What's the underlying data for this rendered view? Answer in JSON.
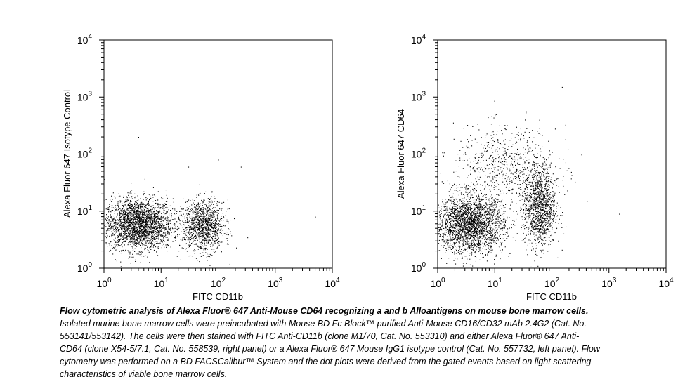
{
  "figure": {
    "caption_bold": "Flow cytometric analysis of Alexa Fluor® 647 Anti-Mouse CD64 recognizing a and b Alloantigens on mouse bone marrow cells.",
    "caption_text": " Isolated murine bone marrow cells were preincubated with Mouse BD Fc Block™ purified Anti-Mouse CD16/CD32 mAb 2.4G2 (Cat. No. 553141/553142).  The cells were then stained with FITC Anti-CD11b (clone M1/70, Cat. No. 553310) and either Alexa Fluor® 647 Anti-CD64 (clone X54-5/7.1, Cat. No. 558539, right panel) or a Alexa Fluor® 647 Mouse IgG1 isotype control (Cat. No. 557732, left panel).  Flow cytometry was performed on a BD FACSCalibur™ System and the dot plots were derived from the gated events based on light scattering characteristics of viable bone marrow cells."
  },
  "chart_data": [
    {
      "type": "scatter",
      "panel": "left",
      "xlabel": "FITC CD11b",
      "ylabel": "Alexa Fluor 647 Isotype Control",
      "xscale": "log",
      "yscale": "log",
      "xlim": [
        1,
        10000
      ],
      "ylim": [
        1,
        10000
      ],
      "xticks": [
        "10^0",
        "10^1",
        "10^2",
        "10^3",
        "10^4"
      ],
      "yticks": [
        "10^0",
        "10^1",
        "10^2",
        "10^3",
        "10^4"
      ],
      "clusters": [
        {
          "center_x": 4,
          "center_y": 6,
          "spread_x_log": 0.3,
          "spread_y_log": 0.22,
          "n": 2600
        },
        {
          "center_x": 55,
          "center_y": 5.5,
          "spread_x_log": 0.18,
          "spread_y_log": 0.22,
          "n": 1200
        }
      ],
      "outliers": [
        [
          4,
          200
        ],
        [
          100,
          80
        ],
        [
          250,
          60
        ],
        [
          5000,
          8
        ],
        [
          30,
          60
        ]
      ]
    },
    {
      "type": "scatter",
      "panel": "right",
      "xlabel": "FITC CD11b",
      "ylabel": "Alexa Fluor 647 CD64",
      "xscale": "log",
      "yscale": "log",
      "xlim": [
        1,
        10000
      ],
      "ylim": [
        1,
        10000
      ],
      "xticks": [
        "10^0",
        "10^1",
        "10^2",
        "10^3",
        "10^4"
      ],
      "yticks": [
        "10^0",
        "10^1",
        "10^2",
        "10^3",
        "10^4"
      ],
      "clusters": [
        {
          "center_x": 3.5,
          "center_y": 6,
          "spread_x_log": 0.3,
          "spread_y_log": 0.25,
          "n": 2600
        },
        {
          "center_x": 60,
          "center_y": 12,
          "spread_x_log": 0.14,
          "spread_y_log": 0.35,
          "n": 1300
        },
        {
          "center_x": 15,
          "center_y": 60,
          "spread_x_log": 0.45,
          "spread_y_log": 0.35,
          "n": 700
        }
      ],
      "outliers": [
        [
          150,
          1500
        ],
        [
          1500,
          9
        ],
        [
          60,
          400
        ]
      ]
    }
  ]
}
